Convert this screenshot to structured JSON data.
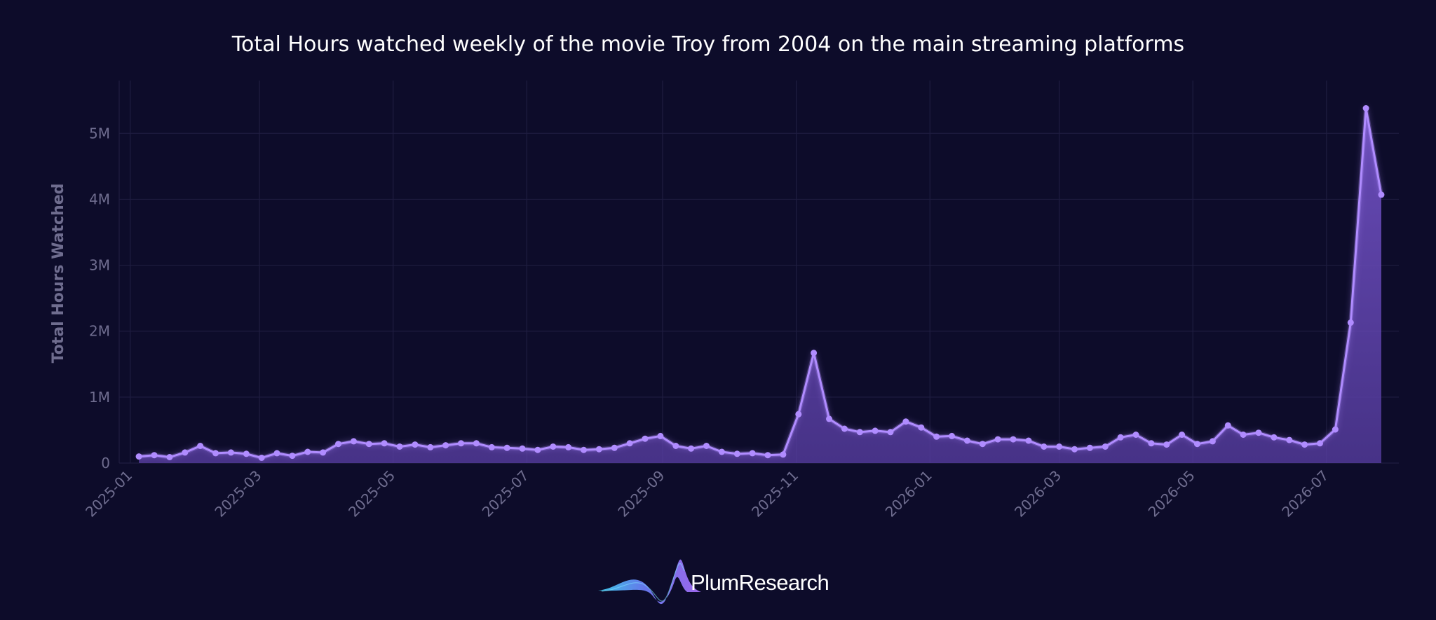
{
  "chart_data": {
    "type": "area",
    "title": "Total Hours watched weekly of the movie Troy from 2004 on the main streaming platforms",
    "xlabel": "",
    "ylabel": "Total Hours Watched",
    "ylim": [
      0,
      5800000
    ],
    "y_ticks": [
      0,
      1000000,
      2000000,
      3000000,
      4000000,
      5000000
    ],
    "y_tick_labels": [
      "0",
      "1M",
      "2M",
      "3M",
      "4M",
      "5M"
    ],
    "x_ticks": [
      "2025-01-01",
      "2025-03-01",
      "2025-05-01",
      "2025-07-01",
      "2025-09-01",
      "2025-11-01",
      "2026-01-01",
      "2026-03-01",
      "2026-05-01",
      "2026-07-01"
    ],
    "x_tick_labels": [
      "2025-01",
      "2025-03",
      "2025-05",
      "2025-07",
      "2025-09",
      "2025-11",
      "2026-01",
      "2026-03",
      "2026-05",
      "2026-07"
    ],
    "grid": true,
    "series": [
      {
        "x": [
          "2025-01-05",
          "2025-01-12",
          "2025-01-19",
          "2025-01-26",
          "2025-02-02",
          "2025-02-09",
          "2025-02-16",
          "2025-02-23",
          "2025-03-02",
          "2025-03-09",
          "2025-03-16",
          "2025-03-23",
          "2025-03-30",
          "2025-04-06",
          "2025-04-13",
          "2025-04-20",
          "2025-04-27",
          "2025-05-04",
          "2025-05-11",
          "2025-05-18",
          "2025-05-25",
          "2025-06-01",
          "2025-06-08",
          "2025-06-15",
          "2025-06-22",
          "2025-06-29",
          "2025-07-06",
          "2025-07-13",
          "2025-07-20",
          "2025-07-27",
          "2025-08-03",
          "2025-08-10",
          "2025-08-17",
          "2025-08-24",
          "2025-08-31",
          "2025-09-07",
          "2025-09-14",
          "2025-09-21",
          "2025-09-28",
          "2025-10-05",
          "2025-10-12",
          "2025-10-19",
          "2025-10-26",
          "2025-11-02",
          "2025-11-09",
          "2025-11-16",
          "2025-11-23",
          "2025-11-30",
          "2025-12-07",
          "2025-12-14",
          "2025-12-21",
          "2025-12-28",
          "2026-01-04",
          "2026-01-11",
          "2026-01-18",
          "2026-01-25",
          "2026-02-01",
          "2026-02-08",
          "2026-02-15",
          "2026-02-22",
          "2026-03-01",
          "2026-03-08",
          "2026-03-15",
          "2026-03-22",
          "2026-03-29",
          "2026-04-05",
          "2026-04-12",
          "2026-04-19",
          "2026-04-26",
          "2026-05-03",
          "2026-05-10",
          "2026-05-17",
          "2026-05-24",
          "2026-05-31",
          "2026-06-07",
          "2026-06-14",
          "2026-06-21",
          "2026-06-28",
          "2026-07-05",
          "2026-07-12",
          "2026-07-19",
          "2026-07-26"
        ],
        "values": [
          100000,
          120000,
          90000,
          160000,
          260000,
          150000,
          160000,
          140000,
          80000,
          150000,
          110000,
          170000,
          160000,
          290000,
          330000,
          290000,
          300000,
          250000,
          280000,
          240000,
          270000,
          300000,
          300000,
          240000,
          230000,
          220000,
          200000,
          250000,
          240000,
          200000,
          210000,
          230000,
          300000,
          370000,
          410000,
          260000,
          220000,
          260000,
          170000,
          140000,
          150000,
          120000,
          130000,
          740000,
          1670000,
          670000,
          520000,
          470000,
          490000,
          470000,
          630000,
          540000,
          400000,
          410000,
          340000,
          290000,
          360000,
          360000,
          340000,
          250000,
          250000,
          210000,
          230000,
          250000,
          390000,
          430000,
          300000,
          280000,
          430000,
          290000,
          330000,
          570000,
          430000,
          460000,
          390000,
          350000,
          280000,
          300000,
          510000,
          2130000,
          5380000,
          4070000
        ]
      }
    ],
    "colors": {
      "background": "#0d0c2a",
      "line": "#b08cff",
      "area": "#6a4fb3"
    }
  },
  "brand": {
    "name": "PlumResearch"
  }
}
